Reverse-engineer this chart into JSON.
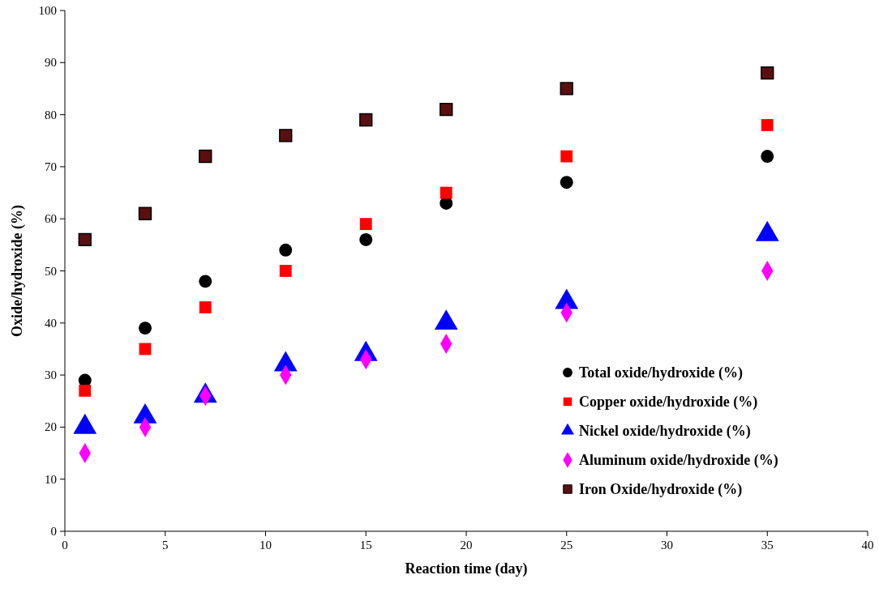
{
  "chart_data": {
    "type": "scatter",
    "xlabel": "Reaction time (day)",
    "ylabel": "Oxide/hydroxide (%)",
    "x": [
      1,
      4,
      7,
      11,
      15,
      19,
      25,
      35
    ],
    "xlim": [
      0,
      40
    ],
    "xticks": [
      0,
      5,
      10,
      15,
      20,
      25,
      30,
      35,
      40
    ],
    "ylim": [
      0,
      100
    ],
    "yticks": [
      0,
      10,
      20,
      30,
      40,
      50,
      60,
      70,
      80,
      90,
      100
    ],
    "grid": false,
    "legend": "bottom right",
    "series": [
      {
        "name": "Total oxide/hydroxide (%)",
        "color": "#000000",
        "marker": "circle",
        "values": [
          29,
          39,
          48,
          54,
          56,
          63,
          67,
          72
        ]
      },
      {
        "name": "Copper oxide/hydroxide (%)",
        "color": "#ff0000",
        "marker": "square",
        "values": [
          27,
          35,
          43,
          50,
          59,
          65,
          72,
          78
        ]
      },
      {
        "name": "Nickel oxide/hydroxide (%)",
        "color": "#0000ff",
        "marker": "triangle",
        "values": [
          20,
          22,
          26,
          32,
          34,
          40,
          44,
          57
        ]
      },
      {
        "name": "Aluminum oxide/hydroxide (%)",
        "color": "#ff00ff",
        "marker": "diamond",
        "values": [
          15,
          20,
          26,
          30,
          33,
          36,
          42,
          50
        ]
      },
      {
        "name": "Iron Oxide/hydroxide (%)",
        "color": "#5a1010",
        "marker": "square",
        "values": [
          56,
          61,
          72,
          76,
          79,
          81,
          85,
          88
        ]
      }
    ]
  }
}
